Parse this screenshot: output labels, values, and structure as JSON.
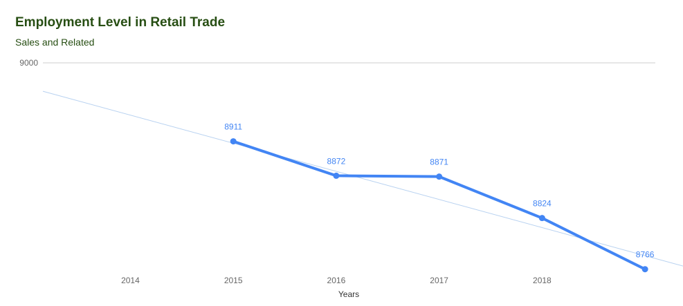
{
  "chart_data": {
    "type": "line",
    "title": "Employment Level in Retail Trade",
    "subtitle": "Sales and Related",
    "xlabel": "Years",
    "ylabel": "",
    "x_ticks": [
      "2014",
      "2015",
      "2016",
      "2017",
      "2018"
    ],
    "y_ticks": [
      "9000"
    ],
    "xlim": [
      2013.15,
      2019.1
    ],
    "ylim": [
      8765,
      9000
    ],
    "grid": true,
    "legend": "none",
    "series": [
      {
        "x": [
          2015,
          2016,
          2017,
          2018,
          2019
        ],
        "values": [
          8911,
          8872,
          8871,
          8824,
          8766
        ],
        "labels": [
          "8911",
          "8872",
          "8871",
          "8824",
          "8766"
        ],
        "color": "#4285f4"
      }
    ],
    "trendline": {
      "type": "linear",
      "color": "#b7d1f0",
      "x": [
        2013.15,
        2019.45
      ],
      "values": [
        8967.8,
        8767
      ]
    },
    "colors": {
      "title": "#274e13",
      "gridline": "#cccccc",
      "axis_text": "#666666"
    }
  }
}
